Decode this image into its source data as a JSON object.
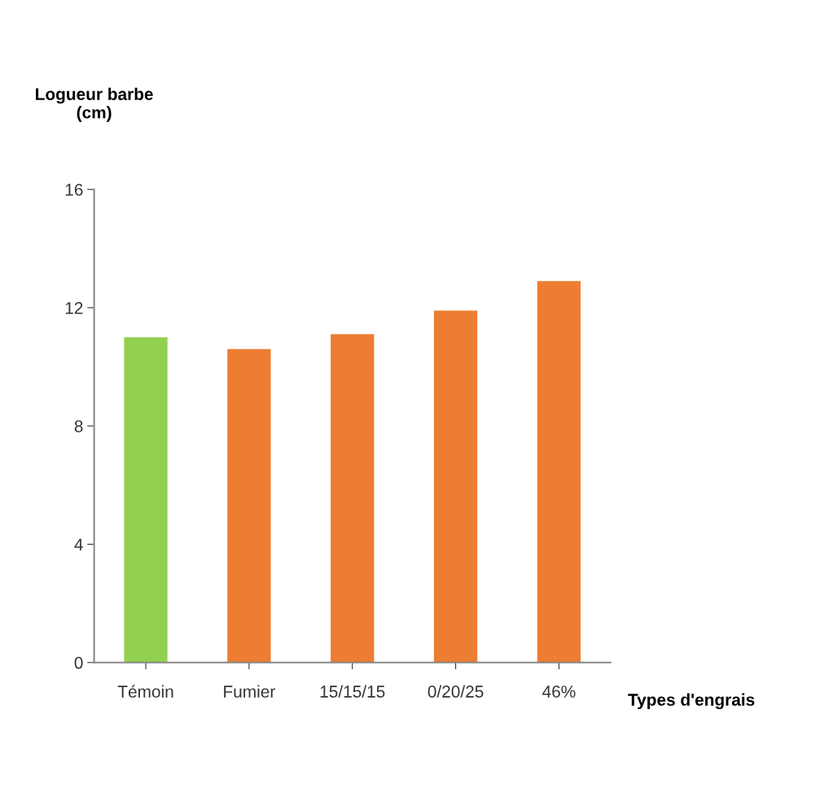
{
  "chart_data": {
    "type": "bar",
    "ylabel": "Logueur barbe\n(cm)",
    "xlabel": "Types d'engrais",
    "categories": [
      "Témoin",
      "Fumier",
      "15/15/15",
      "0/20/25",
      "46%"
    ],
    "values": [
      11.0,
      10.6,
      11.1,
      11.9,
      12.9
    ],
    "colors": [
      "#92d050",
      "#ed7d31",
      "#ed7d31",
      "#ed7d31",
      "#ed7d31"
    ],
    "ylim": [
      0,
      16
    ],
    "yticks": [
      0,
      4,
      8,
      12,
      16
    ],
    "grid": false,
    "legend": false
  }
}
